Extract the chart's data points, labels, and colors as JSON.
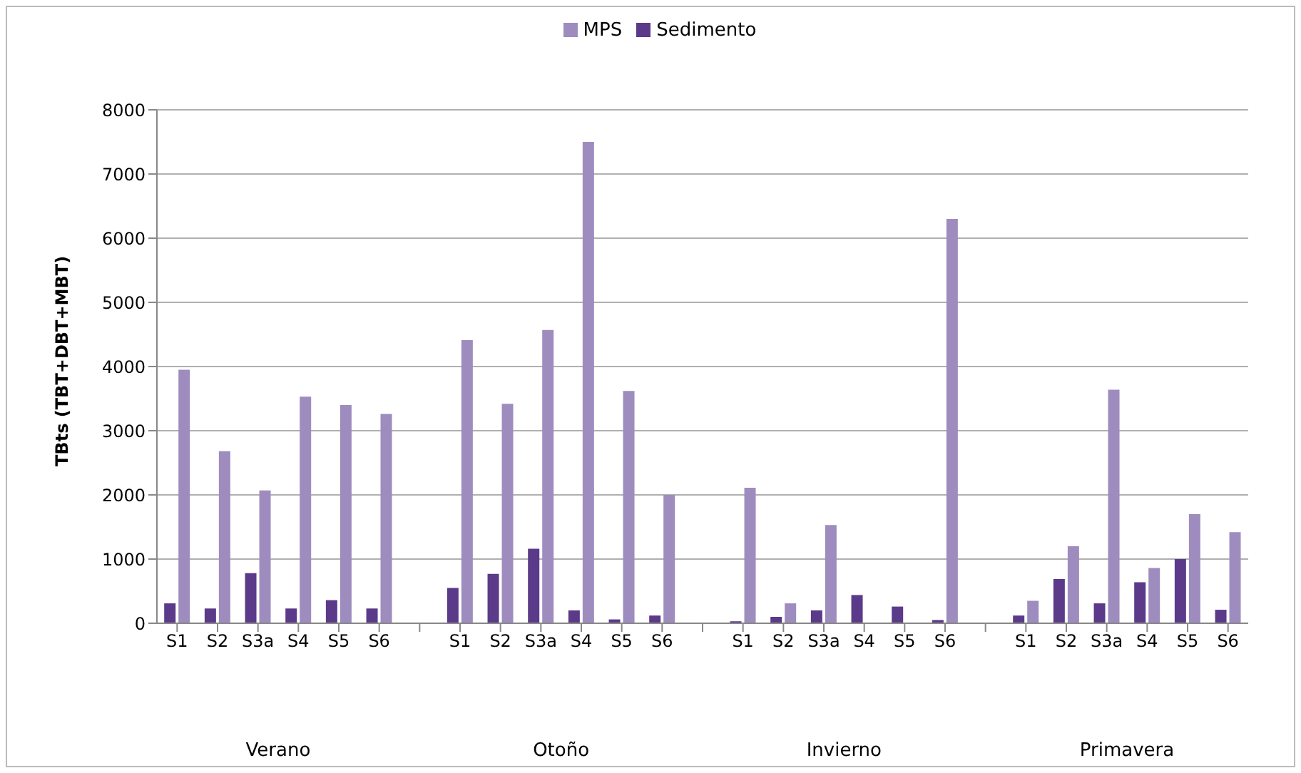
{
  "chart_data": {
    "type": "bar",
    "ylabel": "TBts (TBT+DBT+MBT)",
    "categories": [
      "S1",
      "S2",
      "S3a",
      "S4",
      "S5",
      "S6",
      null,
      "S1",
      "S2",
      "S3a",
      "S4",
      "S5",
      "S6",
      null,
      "S1",
      "S2",
      "S3a",
      "S4",
      "S5",
      "S6",
      null,
      "S1",
      "S2",
      "S3a",
      "S4",
      "S5",
      "S6"
    ],
    "series": [
      {
        "name": "Sedimento",
        "color": "#5b3a8a",
        "values": [
          310,
          230,
          780,
          230,
          360,
          230,
          null,
          550,
          770,
          1160,
          200,
          60,
          120,
          null,
          30,
          100,
          200,
          440,
          260,
          50,
          null,
          120,
          690,
          310,
          640,
          1000,
          210
        ]
      },
      {
        "name": "MPS",
        "color": "#9e8cbf",
        "values": [
          3950,
          2680,
          2070,
          3530,
          3400,
          3260,
          null,
          4410,
          3420,
          4570,
          7500,
          3620,
          2000,
          null,
          2110,
          310,
          1530,
          null,
          null,
          6300,
          null,
          350,
          1200,
          3640,
          860,
          1700,
          1420
        ]
      }
    ],
    "annotations": [
      "Verano",
      "Otoño",
      "Invierno",
      "Primavera"
    ],
    "ylim": [
      0,
      8000
    ],
    "yticks": [
      0,
      1000,
      2000,
      3000,
      4000,
      5000,
      6000,
      7000,
      8000
    ],
    "grid": "y",
    "legend": "top"
  }
}
